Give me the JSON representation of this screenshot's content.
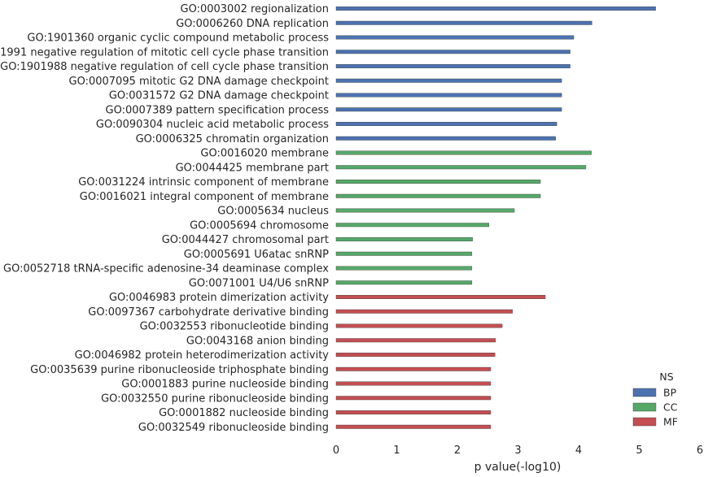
{
  "chart_data": {
    "type": "bar",
    "orientation": "horizontal",
    "xlabel": "p value(-log10)",
    "ylabel": "",
    "xlim": [
      0,
      6
    ],
    "xticks": [
      0,
      1,
      2,
      3,
      4,
      5,
      6
    ],
    "grid": false,
    "legend": {
      "title": "NS",
      "placement": "bottom-right",
      "entries": [
        {
          "name": "BP",
          "color": "#4c72b0"
        },
        {
          "name": "CC",
          "color": "#55a868"
        },
        {
          "name": "MF",
          "color": "#c44e52"
        }
      ]
    },
    "series": [
      {
        "name": "BP",
        "color": "#4c72b0",
        "categories": [
          "GO:0003002 regionalization",
          "GO:0006260 DNA replication",
          "GO:1901360 organic cyclic compound metabolic process",
          "GO:1901991 negative regulation of mitotic cell cycle phase transition",
          "GO:1901988 negative regulation of cell cycle phase transition",
          "GO:0007095 mitotic G2 DNA damage checkpoint",
          "GO:0031572 G2 DNA damage checkpoint",
          "GO:0007389 pattern specification process",
          "GO:0090304 nucleic acid metabolic process",
          "GO:0006325 chromatin organization"
        ],
        "values": [
          5.27,
          4.22,
          3.92,
          3.86,
          3.86,
          3.72,
          3.72,
          3.72,
          3.64,
          3.62
        ]
      },
      {
        "name": "CC",
        "color": "#55a868",
        "categories": [
          "GO:0016020 membrane",
          "GO:0044425 membrane part",
          "GO:0031224 intrinsic component of membrane",
          "GO:0016021 integral component of membrane",
          "GO:0005634 nucleus",
          "GO:0005694 chromosome",
          "GO:0044427 chromosomal part",
          "GO:0005691 U6atac snRNP",
          "GO:0052718 tRNA-specific adenosine-34 deaminase complex",
          "GO:0071001 U4/U6 snRNP"
        ],
        "values": [
          4.21,
          4.12,
          3.37,
          3.37,
          2.94,
          2.52,
          2.25,
          2.24,
          2.24,
          2.24
        ]
      },
      {
        "name": "MF",
        "color": "#c44e52",
        "categories": [
          "GO:0046983 protein dimerization activity",
          "GO:0097367 carbohydrate derivative binding",
          "GO:0032553 ribonucleotide binding",
          "GO:0043168 anion binding",
          "GO:0046982 protein heterodimerization activity",
          "GO:0035639 purine ribonucleoside triphosphate binding",
          "GO:0001883 purine nucleoside binding",
          "GO:0032550 purine ribonucleoside binding",
          "GO:0001882 nucleoside binding",
          "GO:0032549 ribonucleoside binding"
        ],
        "values": [
          3.45,
          2.91,
          2.74,
          2.63,
          2.62,
          2.55,
          2.55,
          2.55,
          2.55,
          2.55
        ]
      }
    ]
  }
}
